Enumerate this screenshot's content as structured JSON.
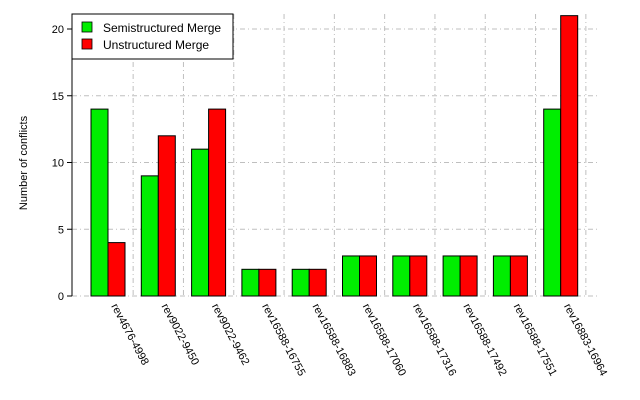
{
  "chart_data": {
    "type": "bar",
    "title": "",
    "xlabel": "",
    "ylabel": "Number of conflicts",
    "ylim": [
      0,
      21
    ],
    "yticks": [
      0,
      5,
      10,
      15,
      20
    ],
    "grid": true,
    "legend_position": "top-left",
    "categories": [
      "rev4676-4998",
      "rev9022-9450",
      "rev9022-9462",
      "rev16588-16755",
      "rev16588-16883",
      "rev16588-17060",
      "rev16588-17316",
      "rev16588-17492",
      "rev16588-17551",
      "rev16883-16964"
    ],
    "series": [
      {
        "name": "Semistructured Merge",
        "color": "#00ee00",
        "values": [
          14,
          9,
          11,
          2,
          2,
          3,
          3,
          3,
          3,
          14
        ]
      },
      {
        "name": "Unstructured Merge",
        "color": "#ff0000",
        "values": [
          4,
          12,
          14,
          2,
          2,
          3,
          3,
          3,
          3,
          21
        ]
      }
    ]
  }
}
